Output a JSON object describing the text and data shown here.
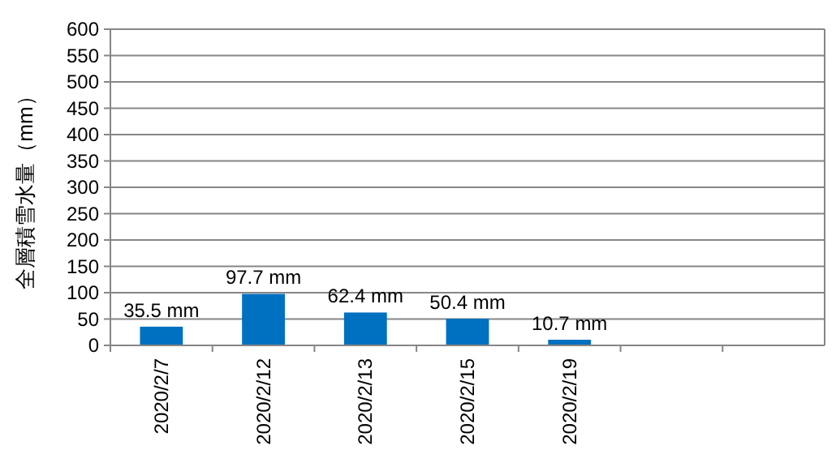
{
  "chart_data": {
    "type": "bar",
    "ylabel": "全層積雪水量（mm）",
    "categories": [
      "2020/2/7",
      "2020/2/12",
      "2020/2/13",
      "2020/2/15",
      "2020/2/19",
      null,
      null
    ],
    "values": [
      35.5,
      97.7,
      62.4,
      50.4,
      10.7,
      null,
      null
    ],
    "value_labels": [
      "35.5 mm",
      "97.7 mm",
      "62.4 mm",
      "50.4 mm",
      "10.7 mm",
      null,
      null
    ],
    "color": "#0070c0",
    "ylim": [
      0,
      600
    ],
    "yticks": [
      0,
      50,
      100,
      150,
      200,
      250,
      300,
      350,
      400,
      450,
      500,
      550,
      600
    ],
    "grid": "y"
  }
}
